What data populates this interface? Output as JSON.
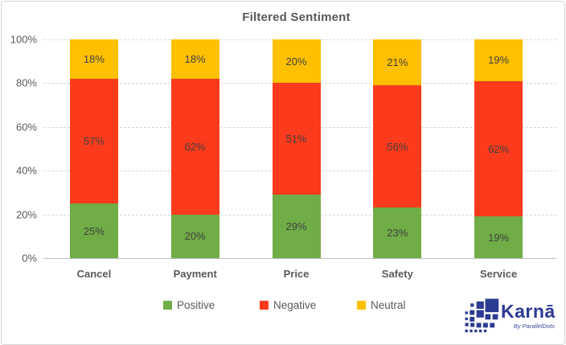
{
  "title": "Filtered Sentiment",
  "chart_data": {
    "type": "bar",
    "stacked": true,
    "percent_stacked": true,
    "title": "Filtered Sentiment",
    "xlabel": "",
    "ylabel": "",
    "categories": [
      "Cancel",
      "Payment",
      "Price",
      "Safety",
      "Service"
    ],
    "series": [
      {
        "name": "Positive",
        "color": "#70AD47",
        "values": [
          25,
          20,
          29,
          23,
          19
        ]
      },
      {
        "name": "Negative",
        "color": "#FB3B1C",
        "values": [
          57,
          62,
          51,
          56,
          62
        ]
      },
      {
        "name": "Neutral",
        "color": "#FFC000",
        "values": [
          18,
          18,
          20,
          21,
          19
        ]
      }
    ],
    "ylim": [
      0,
      100
    ],
    "yticks": [
      "0%",
      "20%",
      "40%",
      "60%",
      "80%",
      "100%"
    ],
    "ytick_values": [
      0,
      20,
      40,
      60,
      80,
      100
    ],
    "grid": "horizontal-dashed",
    "legend_position": "bottom",
    "data_label_format": "percent"
  },
  "legend": {
    "items": [
      {
        "label": "Positive",
        "color": "#70AD47"
      },
      {
        "label": "Negative",
        "color": "#FB3B1C"
      },
      {
        "label": "Neutral",
        "color": "#FFC000"
      }
    ]
  },
  "logo": {
    "text": "Karnā",
    "subtext": "By ParallelDots",
    "color": "#2B3A92"
  },
  "colors": {
    "positive": "#70AD47",
    "negative": "#FB3B1C",
    "neutral": "#FFC000",
    "title_text": "#595959",
    "axis_text": "#595959",
    "value_label_text": "#404040",
    "gridline": "#D9D9D9",
    "axis_line": "#BFBFBF",
    "frame_border": "#D6D6D6",
    "logo_blue": "#2B3A92"
  }
}
